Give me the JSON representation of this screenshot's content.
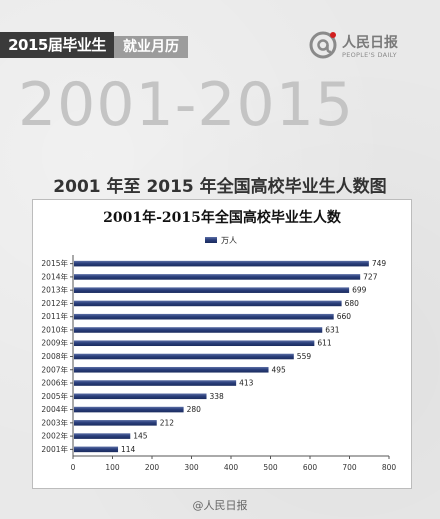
{
  "header": {
    "series_tag": "2015届毕业生",
    "column_tag": "就业月历",
    "logo_name": "人民日报",
    "logo_sub": "PEOPLE'S DAILY",
    "big_years": "2001-2015"
  },
  "heading": "2001 年至 2015 年全国高校毕业生人数图",
  "chart_data": {
    "type": "bar",
    "orientation": "horizontal",
    "title": "2001年-2015年全国高校毕业生人数",
    "categories": [
      "2001年",
      "2002年",
      "2003年",
      "2004年",
      "2005年",
      "2006年",
      "2007年",
      "2008年",
      "2009年",
      "2010年",
      "2011年",
      "2012年",
      "2013年",
      "2014年",
      "2015年"
    ],
    "series": [
      {
        "name": "万人",
        "values": [
          114,
          145,
          212,
          280,
          338,
          413,
          495,
          559,
          611,
          631,
          660,
          680,
          699,
          727,
          749
        ]
      }
    ],
    "xlim": [
      0,
      800
    ],
    "xticks": [
      0,
      100,
      200,
      300,
      400,
      500,
      600,
      700,
      800
    ],
    "grid": false,
    "legend_position": "top-left",
    "colors": {
      "bar": "#1f3570",
      "bar_highlight": "#5c6fa6"
    }
  },
  "footer": "@人民日报"
}
